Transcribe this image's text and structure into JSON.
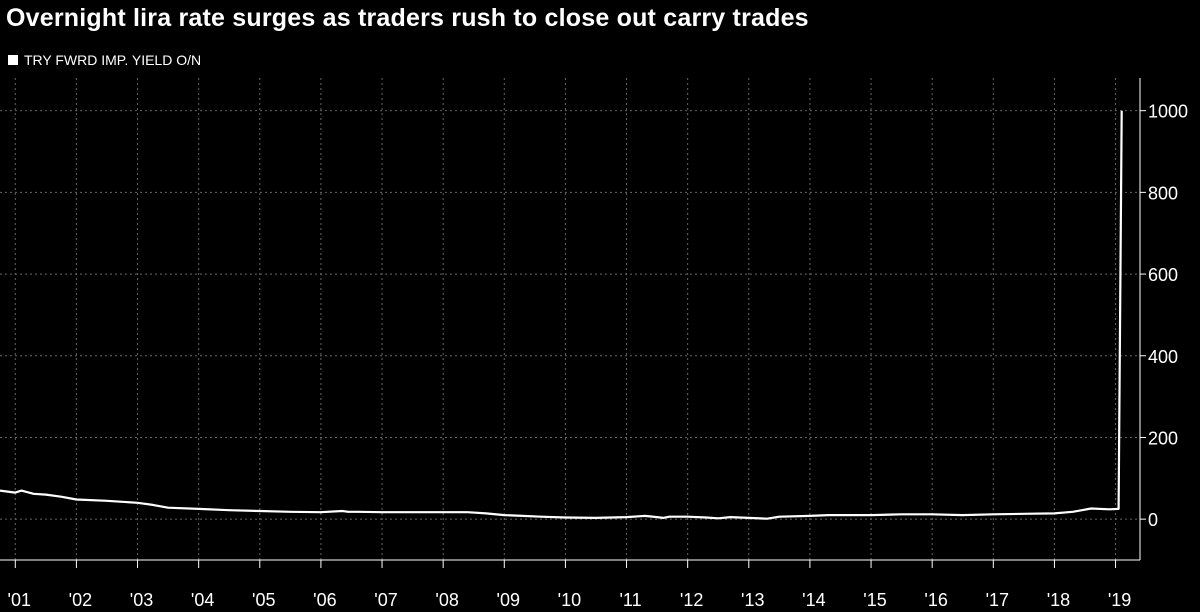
{
  "title": "Overnight lira rate surges as traders rush to close out carry trades",
  "legend": {
    "label": "TRY FWRD IMP. YIELD O/N"
  },
  "colors": {
    "background": "#000000",
    "line": "#ffffff",
    "grid": "#666666"
  },
  "chart_data": {
    "type": "line",
    "title": "Overnight lira rate surges as traders rush to close out carry trades",
    "series": [
      {
        "name": "TRY FWRD IMP. YIELD O/N",
        "x": [
          2000.75,
          2001.0,
          2001.1,
          2001.3,
          2001.5,
          2001.75,
          2002.0,
          2002.5,
          2003.0,
          2003.25,
          2003.5,
          2004.0,
          2004.5,
          2005.0,
          2005.5,
          2006.0,
          2006.35,
          2006.45,
          2006.6,
          2007.0,
          2007.5,
          2008.0,
          2008.4,
          2008.7,
          2009.0,
          2009.3,
          2009.6,
          2010.0,
          2010.5,
          2011.0,
          2011.3,
          2011.5,
          2011.6,
          2011.7,
          2012.0,
          2012.3,
          2012.5,
          2012.7,
          2013.0,
          2013.3,
          2013.5,
          2014.0,
          2014.3,
          2014.6,
          2015.0,
          2015.5,
          2016.0,
          2016.5,
          2017.0,
          2017.5,
          2018.0,
          2018.3,
          2018.45,
          2018.6,
          2018.9,
          2019.05,
          2019.1
        ],
        "values": [
          70,
          65,
          70,
          62,
          60,
          55,
          48,
          45,
          40,
          35,
          28,
          25,
          22,
          20,
          18,
          17,
          20,
          18,
          18,
          17,
          17,
          17,
          17,
          14,
          10,
          8,
          6,
          4,
          3,
          5,
          8,
          5,
          3,
          6,
          6,
          4,
          2,
          5,
          3,
          1,
          6,
          8,
          10,
          10,
          10,
          12,
          12,
          10,
          12,
          13,
          14,
          18,
          22,
          26,
          24,
          25,
          1000
        ]
      }
    ],
    "x_ticks": [
      "'01",
      "'02",
      "'03",
      "'04",
      "'05",
      "'06",
      "'07",
      "'08",
      "'09",
      "'10",
      "'11",
      "'12",
      "'13",
      "'14",
      "'15",
      "'16",
      "'17",
      "'18",
      "'19"
    ],
    "y_ticks": [
      0,
      200,
      400,
      600,
      800,
      1000
    ],
    "xlim": [
      2000.75,
      2019.4
    ],
    "ylim": [
      -100,
      1080
    ],
    "grid": true,
    "legend_position": "top-left"
  }
}
